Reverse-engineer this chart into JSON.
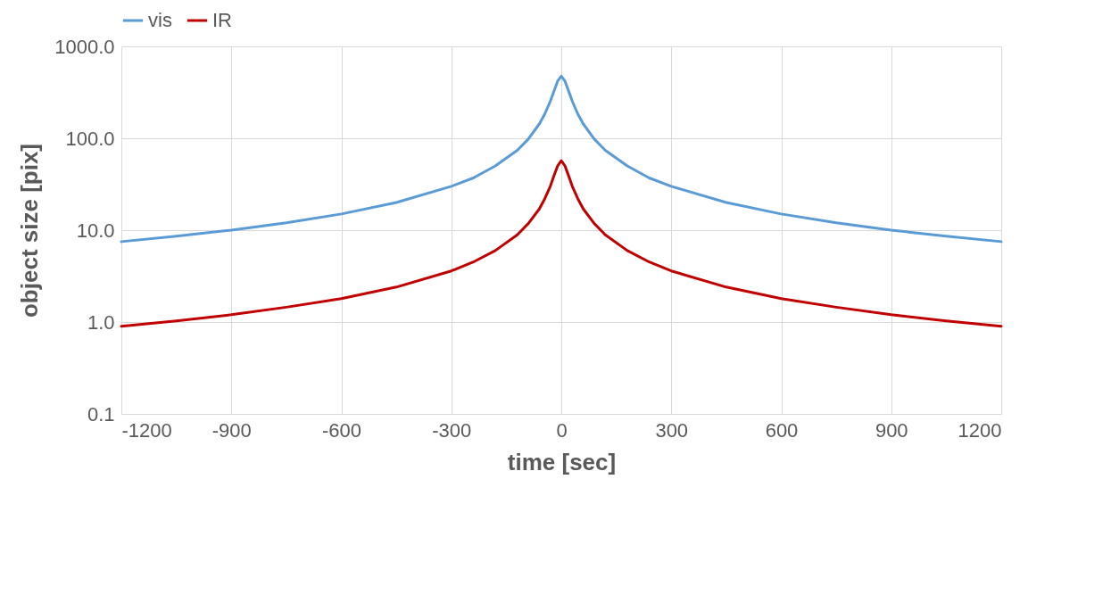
{
  "chart_data": {
    "type": "line",
    "xlabel": "time [sec]",
    "ylabel": "object size [pix]",
    "x": [
      -1200,
      -1050,
      -900,
      -750,
      -600,
      -450,
      -300,
      -240,
      -180,
      -120,
      -90,
      -60,
      -45,
      -30,
      -20,
      -10,
      0,
      10,
      20,
      30,
      45,
      60,
      90,
      120,
      180,
      240,
      300,
      450,
      600,
      750,
      900,
      1050,
      1200
    ],
    "series": [
      {
        "name": "vis",
        "color": "#5b9bd5",
        "values": [
          7.5,
          8.6,
          10,
          12,
          15,
          20,
          30,
          37,
          50,
          74,
          98,
          143,
          184,
          253,
          326,
          419,
          474,
          419,
          326,
          253,
          184,
          143,
          98,
          74,
          50,
          37,
          30,
          20,
          15,
          12,
          10,
          8.6,
          7.5
        ]
      },
      {
        "name": "IR",
        "color": "#c00000",
        "values": [
          0.9,
          1.03,
          1.2,
          1.45,
          1.8,
          2.4,
          3.6,
          4.5,
          6,
          8.9,
          11.8,
          17,
          22,
          30,
          39,
          50,
          57,
          50,
          39,
          30,
          22,
          17,
          11.8,
          8.9,
          6,
          4.5,
          3.6,
          2.4,
          1.8,
          1.45,
          1.2,
          1.03,
          0.9
        ]
      }
    ],
    "log": true,
    "xlim": [
      -1200,
      1200
    ],
    "xticks": [
      -1200,
      -900,
      -600,
      -300,
      0,
      300,
      600,
      900,
      1200
    ],
    "ylim": [
      0.1,
      1000
    ],
    "yticks": [
      {
        "value": 0.1,
        "label": "0.1"
      },
      {
        "value": 1,
        "label": "1.0"
      },
      {
        "value": 10,
        "label": "10.0"
      },
      {
        "value": 100,
        "label": "100.0"
      },
      {
        "value": 1000,
        "label": "1000.0"
      }
    ],
    "grid": true,
    "legend": "top",
    "marker": "none",
    "line_style": "solid"
  }
}
